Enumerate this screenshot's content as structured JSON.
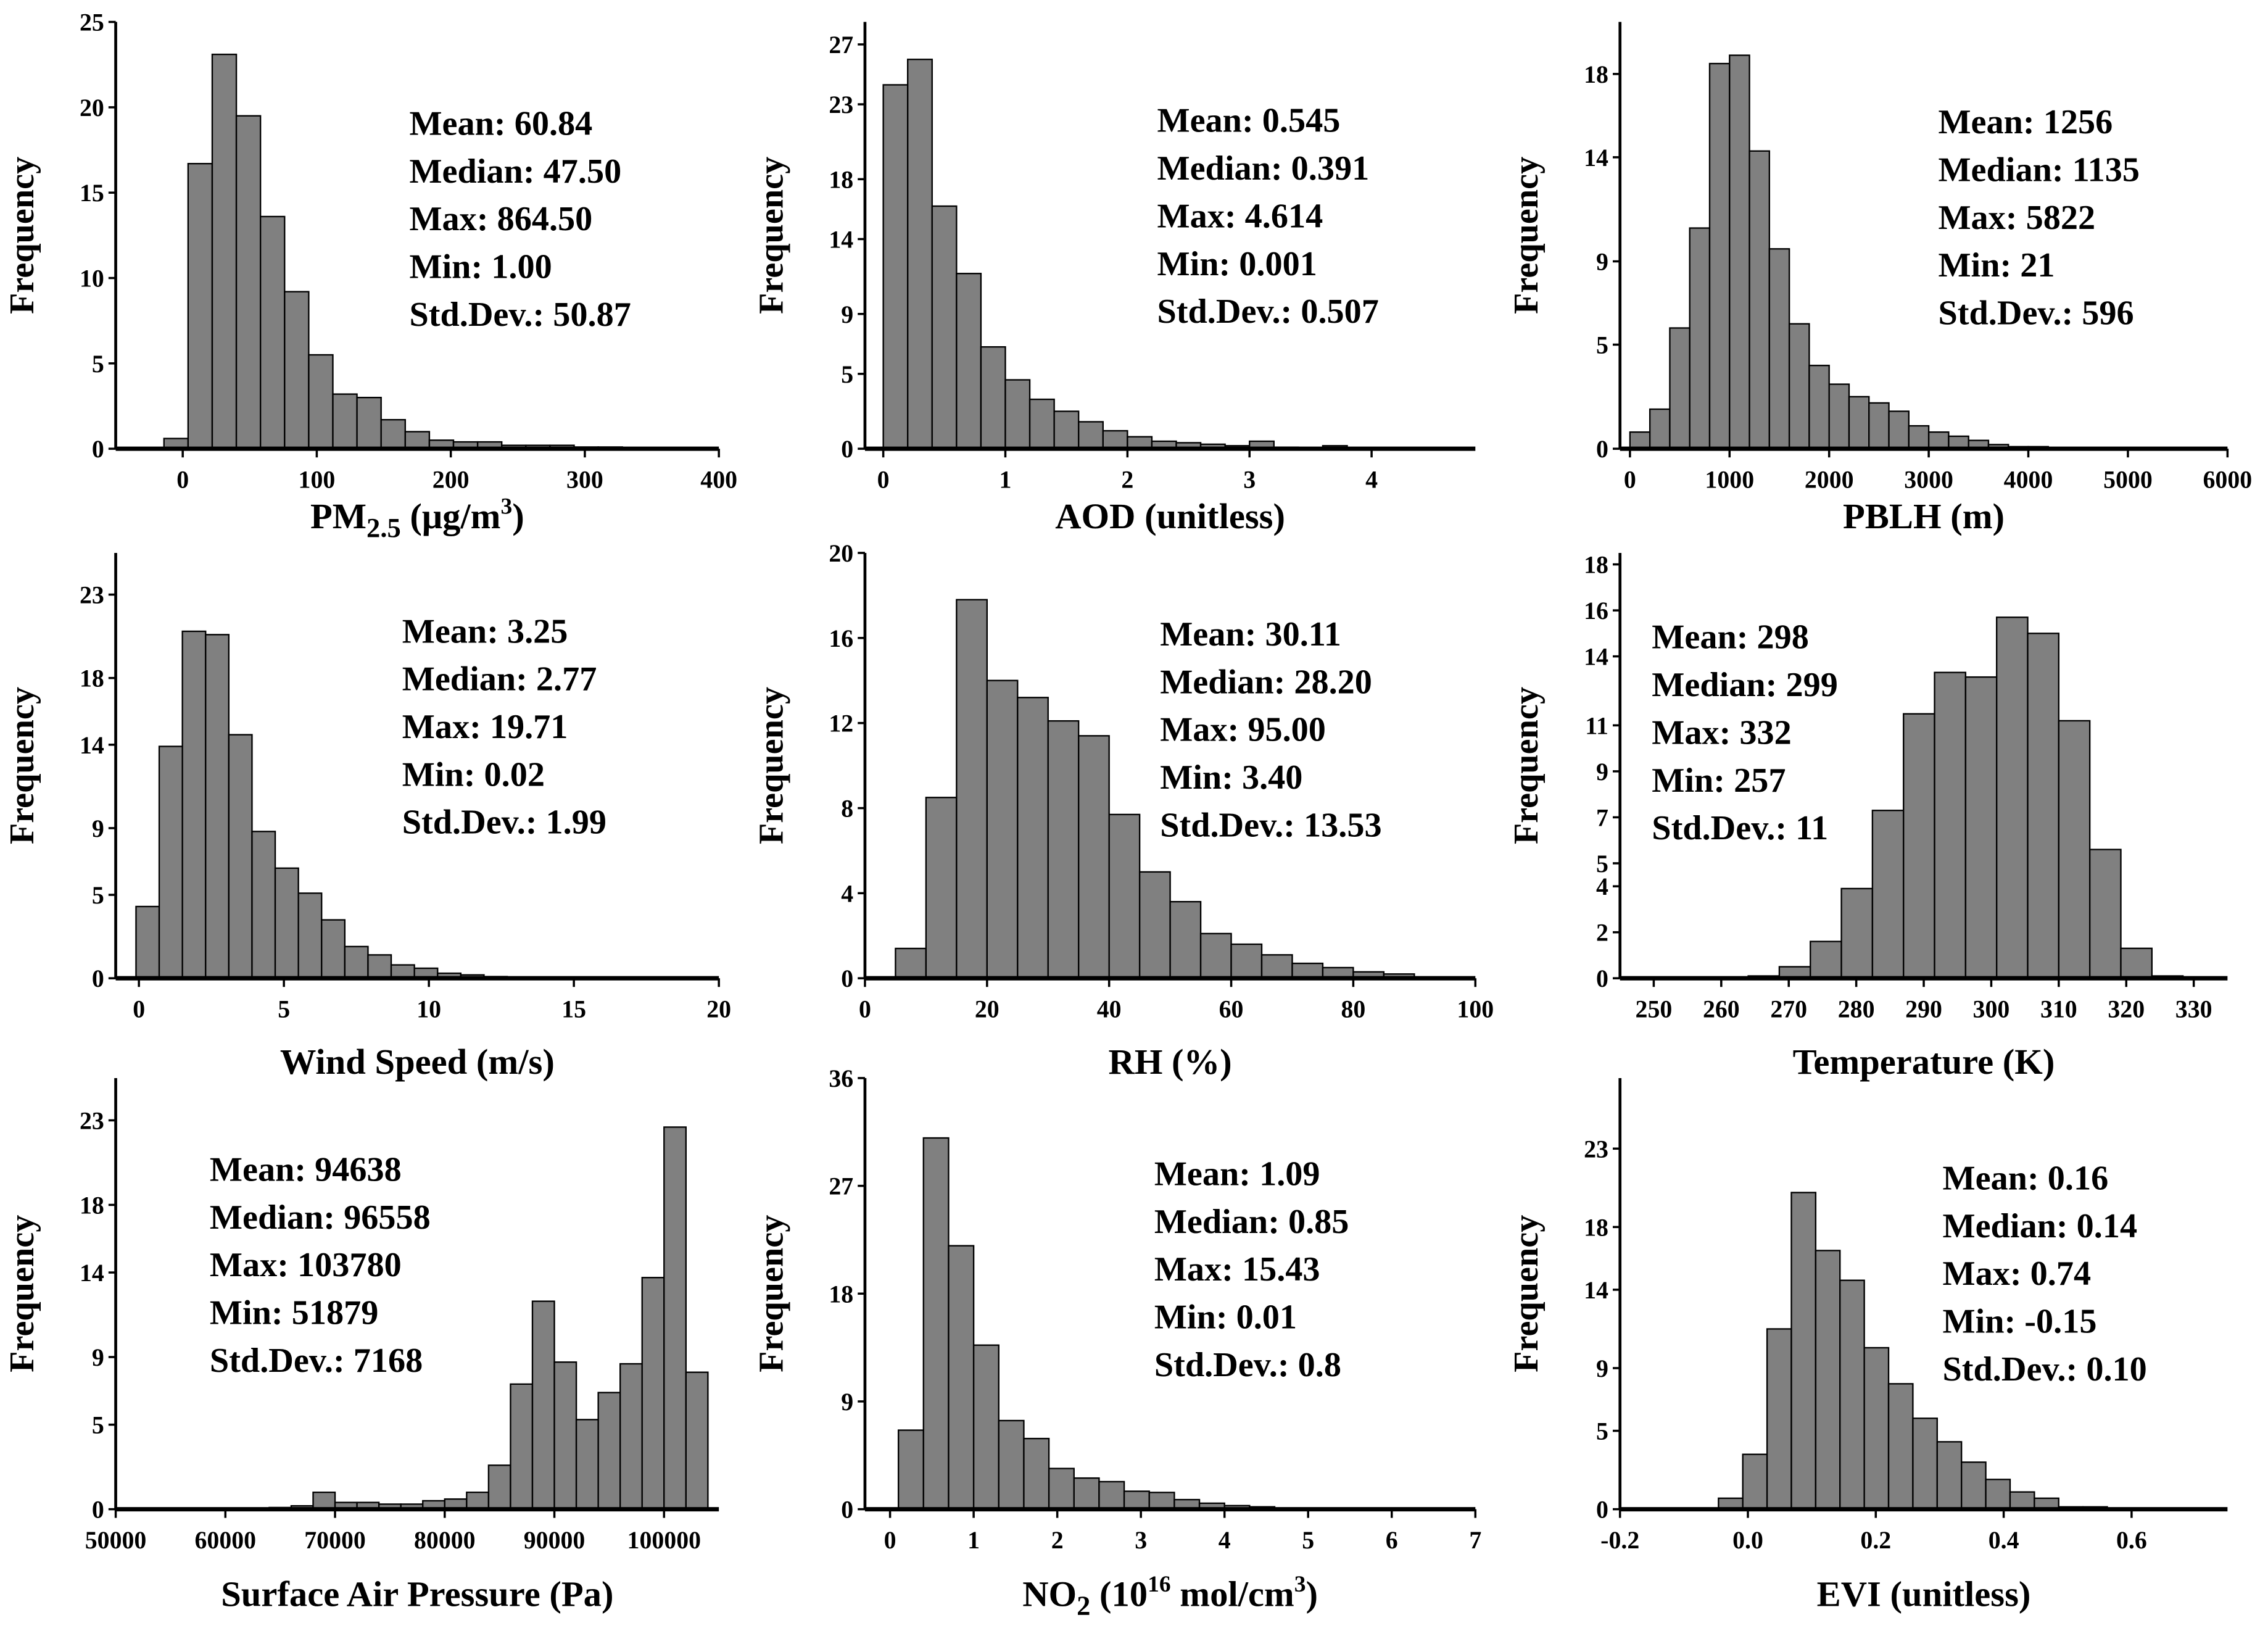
{
  "chart_data": [
    {
      "type": "bar",
      "xlabel_parts": [
        {
          "text": "PM"
        },
        {
          "text": "2.5",
          "sub": true
        },
        {
          "text": " (μg/m"
        },
        {
          "text": "3",
          "sup": true
        },
        {
          "text": ")"
        }
      ],
      "ylabel": "Frequency",
      "xlim": [
        -50,
        400
      ],
      "ylim": [
        0,
        25
      ],
      "xticks": [
        0,
        100,
        200,
        300,
        400
      ],
      "yticks": [
        0,
        5,
        10,
        15,
        20,
        25
      ],
      "bin_start": -14,
      "bin_width": 18,
      "values": [
        0.6,
        16.7,
        23.1,
        19.5,
        13.6,
        9.2,
        5.5,
        3.2,
        3.0,
        1.7,
        1.0,
        0.5,
        0.4,
        0.4,
        0.2,
        0.2,
        0.2,
        0.1,
        0.1,
        0.05
      ],
      "stats": [
        "Mean: 60.84",
        "Median: 47.50",
        "Max: 864.50",
        "Min: 1.00",
        "Std.Dev.: 50.87"
      ]
    },
    {
      "type": "bar",
      "xlabel_parts": [
        {
          "text": "AOD (unitless)"
        }
      ],
      "ylabel": "Frequency",
      "xlim": [
        -0.15,
        4.85
      ],
      "ylim": [
        0,
        28.5
      ],
      "xticks": [
        0,
        1,
        2,
        3,
        4
      ],
      "yticks": [
        0,
        5,
        9,
        14,
        18,
        23,
        27
      ],
      "bin_start": 0,
      "bin_width": 0.2,
      "values": [
        24.3,
        26.0,
        16.2,
        11.7,
        6.8,
        4.6,
        3.3,
        2.5,
        1.8,
        1.2,
        0.8,
        0.5,
        0.4,
        0.3,
        0.2,
        0.5,
        0.1,
        0.05,
        0.2,
        0.05
      ],
      "stats": [
        "Mean: 0.545",
        "Median: 0.391",
        "Max: 4.614",
        "Min: 0.001",
        "Std.Dev.: 0.507"
      ]
    },
    {
      "type": "bar",
      "xlabel_parts": [
        {
          "text": "PBLH (m)"
        }
      ],
      "ylabel": "Frequency",
      "xlim": [
        -100,
        6000
      ],
      "ylim": [
        0,
        20.5
      ],
      "xticks": [
        0,
        1000,
        2000,
        3000,
        4000,
        5000,
        6000
      ],
      "yticks": [
        0,
        5,
        9,
        14,
        18
      ],
      "bin_start": 0,
      "bin_width": 200,
      "values": [
        0.8,
        1.9,
        5.8,
        10.6,
        18.5,
        18.9,
        14.3,
        9.6,
        6.0,
        4.0,
        3.1,
        2.5,
        2.2,
        1.8,
        1.1,
        0.8,
        0.6,
        0.4,
        0.2,
        0.1,
        0.1
      ],
      "stats": [
        "Mean: 1256",
        "Median: 1135",
        "Max: 5822",
        "Min: 21",
        "Std.Dev.: 596"
      ]
    },
    {
      "type": "bar",
      "xlabel_parts": [
        {
          "text": "Wind Speed (m/s)"
        }
      ],
      "ylabel": "Frequency",
      "xlim": [
        -0.8,
        20
      ],
      "ylim": [
        0,
        25.5
      ],
      "xticks": [
        0,
        5,
        10,
        15,
        20
      ],
      "yticks": [
        0,
        5,
        9,
        14,
        18,
        23
      ],
      "bin_start": -0.1,
      "bin_width": 0.8,
      "values": [
        4.3,
        13.9,
        20.8,
        20.6,
        14.6,
        8.8,
        6.6,
        5.1,
        3.5,
        1.9,
        1.4,
        0.8,
        0.6,
        0.3,
        0.2,
        0.1
      ],
      "stats": [
        "Mean: 3.25",
        "Median: 2.77",
        "Max: 19.71",
        "Min: 0.02",
        "Std.Dev.: 1.99"
      ]
    },
    {
      "type": "bar",
      "xlabel_parts": [
        {
          "text": "RH (%)"
        }
      ],
      "ylabel": "Frequency",
      "xlim": [
        0,
        100
      ],
      "ylim": [
        0,
        20
      ],
      "xticks": [
        0,
        20,
        40,
        60,
        80,
        100
      ],
      "yticks": [
        0,
        4,
        8,
        12,
        16,
        20
      ],
      "bin_start": 5,
      "bin_width": 5,
      "values": [
        1.4,
        8.5,
        17.8,
        14.0,
        13.2,
        12.1,
        11.4,
        7.7,
        5.0,
        3.6,
        2.1,
        1.6,
        1.1,
        0.7,
        0.5,
        0.3,
        0.2
      ],
      "stats": [
        "Mean: 30.11",
        "Median: 28.20",
        "Max: 95.00",
        "Min: 3.40",
        "Std.Dev.: 13.53"
      ]
    },
    {
      "type": "bar",
      "xlabel_parts": [
        {
          "text": "Temperature (K)"
        }
      ],
      "ylabel": "Frequency",
      "xlim": [
        245,
        335
      ],
      "ylim": [
        0,
        18.5
      ],
      "xticks": [
        250,
        260,
        270,
        280,
        290,
        300,
        310,
        320,
        330
      ],
      "yticks": [
        0,
        2,
        4,
        5,
        7,
        9,
        11,
        14,
        16,
        18
      ],
      "bin_start": 264,
      "bin_width": 4.6,
      "values": [
        0.1,
        0.5,
        1.6,
        3.9,
        7.3,
        11.5,
        13.3,
        13.1,
        15.7,
        15.0,
        11.2,
        5.6,
        1.3,
        0.1
      ],
      "stats": [
        "Mean: 298",
        "Median: 299",
        "Max: 332",
        "Min: 257",
        "Std.Dev.: 11"
      ]
    },
    {
      "type": "bar",
      "xlabel_parts": [
        {
          "text": "Surface Air Pressure (Pa)"
        }
      ],
      "ylabel": "Frequency",
      "xlim": [
        50000,
        105000
      ],
      "ylim": [
        0,
        25.5
      ],
      "xticks": [
        50000,
        60000,
        70000,
        80000,
        90000,
        100000
      ],
      "yticks": [
        0,
        5,
        9,
        14,
        18,
        23
      ],
      "bin_start": 62000,
      "bin_width": 2000,
      "values": [
        0.05,
        0.1,
        0.2,
        1.0,
        0.4,
        0.4,
        0.3,
        0.3,
        0.5,
        0.6,
        1.0,
        2.6,
        7.4,
        12.3,
        8.7,
        5.3,
        6.9,
        8.6,
        13.7,
        22.6,
        8.1
      ],
      "stats": [
        "Mean: 94638",
        "Median: 96558",
        "Max: 103780",
        "Min: 51879",
        "Std.Dev.: 7168"
      ]
    },
    {
      "type": "bar",
      "xlabel_parts": [
        {
          "text": "NO"
        },
        {
          "text": "2",
          "sub": true
        },
        {
          "text": " (10"
        },
        {
          "text": "16",
          "sup": true
        },
        {
          "text": " mol/cm"
        },
        {
          "text": "3",
          "sup": true
        },
        {
          "text": ")"
        }
      ],
      "ylabel": "Frequency",
      "xlim": [
        -0.3,
        7
      ],
      "ylim": [
        0,
        36
      ],
      "xticks": [
        0,
        1,
        2,
        3,
        4,
        5,
        6,
        7
      ],
      "yticks": [
        0,
        9,
        18,
        27,
        36
      ],
      "bin_start": 0.1,
      "bin_width": 0.3,
      "values": [
        6.6,
        31.0,
        22.0,
        13.7,
        7.4,
        5.9,
        3.4,
        2.6,
        2.3,
        1.5,
        1.4,
        0.8,
        0.5,
        0.3,
        0.2,
        0.1
      ],
      "stats": [
        "Mean: 1.09",
        "Median: 0.85",
        "Max: 15.43",
        "Min: 0.01",
        "Std.Dev.: 0.8"
      ]
    },
    {
      "type": "bar",
      "xlabel_parts": [
        {
          "text": "EVI (unitless)"
        }
      ],
      "ylabel": "Frequency",
      "xlim": [
        -0.2,
        0.75
      ],
      "ylim": [
        0,
        27.5
      ],
      "xticks": [
        -0.2,
        0.0,
        0.2,
        0.4,
        0.6
      ],
      "xtick_labels": [
        "-0.2",
        "0.0",
        "0.2",
        "0.4",
        "0.6"
      ],
      "yticks": [
        0,
        5,
        9,
        14,
        18,
        23
      ],
      "bin_start": -0.046,
      "bin_width": 0.038,
      "values": [
        0.7,
        3.5,
        11.5,
        20.2,
        16.5,
        14.6,
        10.3,
        8.0,
        5.8,
        4.3,
        3.0,
        1.9,
        1.1,
        0.7,
        0.15,
        0.15
      ],
      "stats": [
        "Mean: 0.16",
        "Median: 0.14",
        "Max: 0.74",
        "Min: -0.15",
        "Std.Dev.: 0.10"
      ]
    }
  ],
  "colors": {
    "bar": "#808080",
    "edge": "#000000"
  }
}
